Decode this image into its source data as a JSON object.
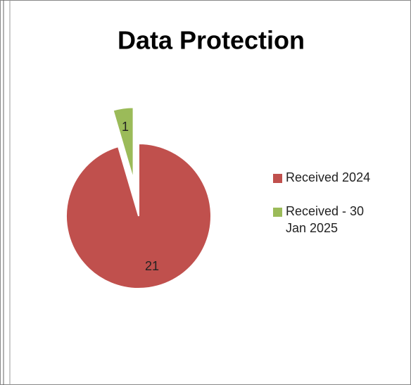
{
  "chart_data": {
    "type": "pie",
    "title": "Data Protection",
    "categories": [
      "Received 2024",
      "Received - 30 Jan 2025"
    ],
    "values": [
      21,
      1
    ],
    "colors": [
      "#c0504d",
      "#9bbb59"
    ],
    "legend": "right"
  }
}
